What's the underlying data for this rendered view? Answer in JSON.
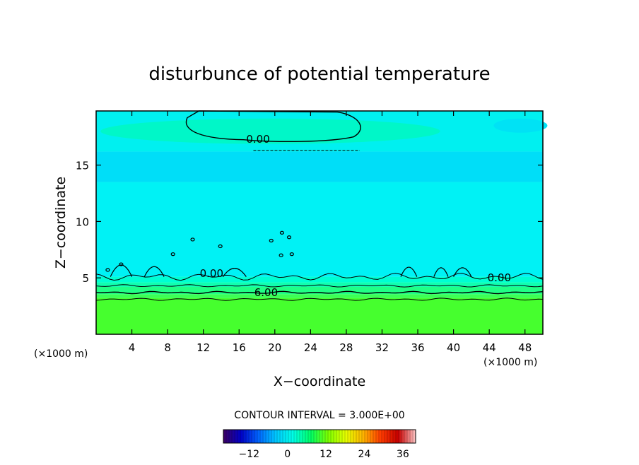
{
  "chart_data": {
    "type": "heatmap",
    "title": "disturbunce of potential temperature",
    "xlabel": "X−coordinate",
    "ylabel": "Z−coordinate",
    "x_unit": "(×1000 m)",
    "y_unit": "(×1000 m)",
    "xlim": [
      0,
      50
    ],
    "ylim": [
      0,
      19.8
    ],
    "x_ticks": [
      4,
      8,
      12,
      16,
      20,
      24,
      28,
      32,
      36,
      40,
      44,
      48
    ],
    "y_ticks": [
      5,
      10,
      15
    ],
    "grid": false,
    "contour_interval_label": "CONTOUR INTERVAL = 3.000E+00",
    "contour_labels": [
      {
        "text": "0.00",
        "x": 16.8,
        "z": 17.3
      },
      {
        "text": "0.00",
        "x": 11.6,
        "z": 5.4
      },
      {
        "text": "0.00",
        "x": 43.8,
        "z": 5.0
      },
      {
        "text": "6.00",
        "x": 17.7,
        "z": 3.7
      }
    ],
    "colorbar": {
      "range": [
        -20,
        40
      ],
      "ticks": [
        -12,
        0,
        12,
        24,
        36
      ],
      "colors": [
        "#3c0064",
        "#0000c8",
        "#0064ff",
        "#00c8ff",
        "#00ffe6",
        "#00ff64",
        "#7cff00",
        "#e6ff00",
        "#ffb400",
        "#ff3c00",
        "#c80000",
        "#ffc8c8"
      ]
    },
    "bands": [
      {
        "z0": 0.0,
        "z1": 3.2,
        "color": "#46ff2e"
      },
      {
        "z0": 3.2,
        "z1": 3.55,
        "color": "#3cff55"
      },
      {
        "z0": 3.55,
        "z1": 4.2,
        "color": "#20ff86"
      },
      {
        "z0": 4.2,
        "z1": 4.6,
        "color": "#10ffb0"
      },
      {
        "z0": 4.6,
        "z1": 5.1,
        "color": "#00ffd2"
      },
      {
        "z0": 5.1,
        "z1": 13.5,
        "color": "#00f2f5"
      },
      {
        "z0": 13.5,
        "z1": 16.2,
        "color": "#00def8"
      },
      {
        "z0": 16.2,
        "z1": 19.8,
        "color": "#00f0f0"
      }
    ],
    "contours": [
      {
        "level": 0,
        "z_mean": 17.8
      },
      {
        "level": 0,
        "z_mean": 5.1
      },
      {
        "level": 3,
        "z_mean": 4.3
      },
      {
        "level": 6,
        "z_mean": 3.7
      },
      {
        "level": 9,
        "z_mean": 3.1
      }
    ]
  }
}
